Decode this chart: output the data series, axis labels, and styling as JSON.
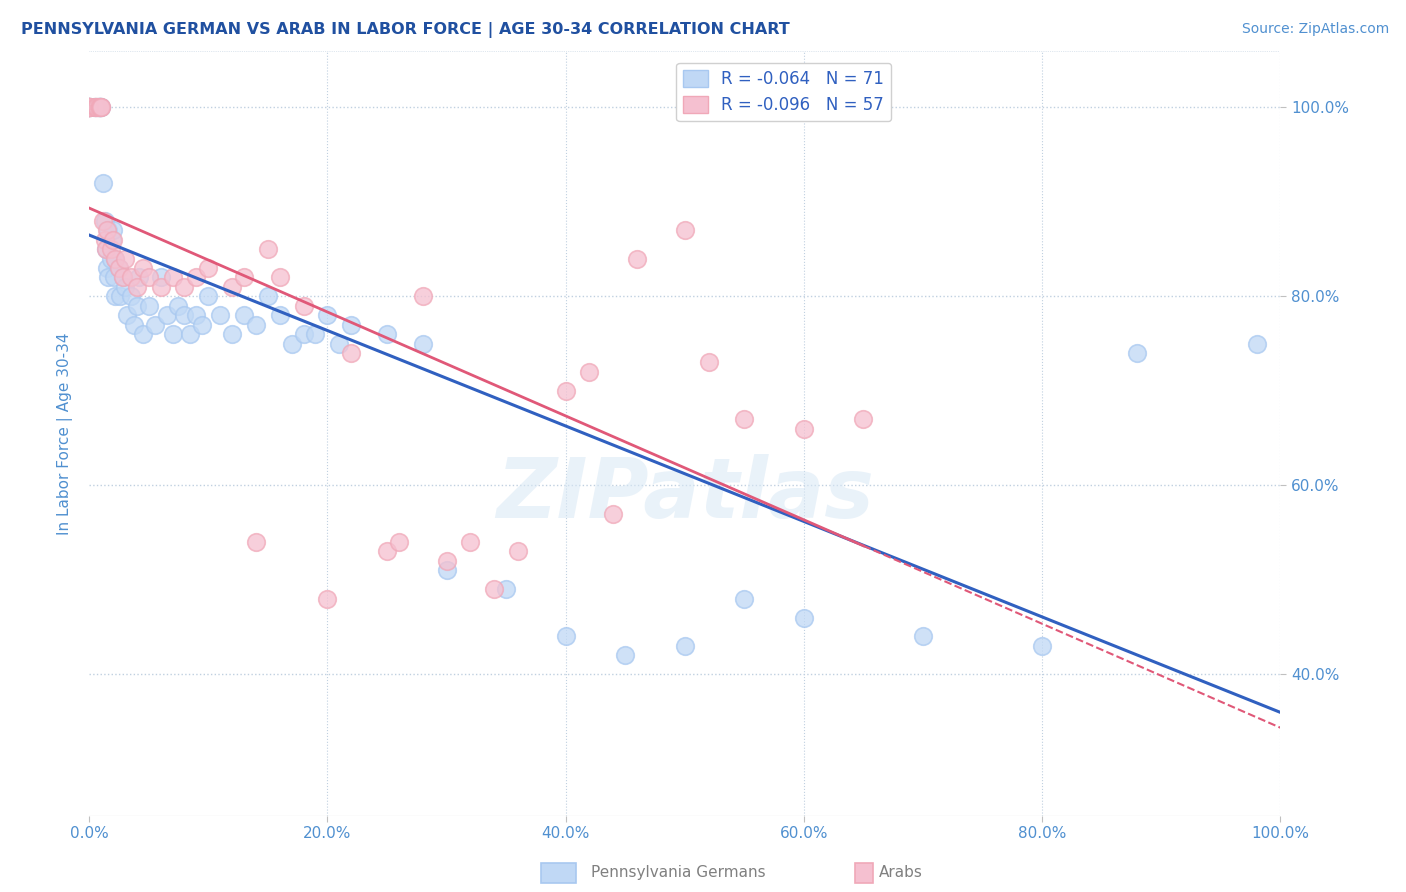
{
  "title": "PENNSYLVANIA GERMAN VS ARAB IN LABOR FORCE | AGE 30-34 CORRELATION CHART",
  "source_text": "Source: ZipAtlas.com",
  "ylabel": "In Labor Force | Age 30-34",
  "watermark": "ZIPatlas",
  "legend_blue_r": "-0.064",
  "legend_blue_n": "71",
  "legend_pink_r": "-0.096",
  "legend_pink_n": "57",
  "xlim": [
    0.0,
    1.0
  ],
  "ylim": [
    0.25,
    1.06
  ],
  "yticks": [
    0.4,
    0.6,
    0.8,
    1.0
  ],
  "xticks": [
    0.0,
    0.2,
    0.4,
    0.6,
    0.8,
    1.0
  ],
  "blue_color": "#A8C8F0",
  "blue_face": "#C0D8F5",
  "pink_color": "#F0A8B8",
  "pink_face": "#F5C0D0",
  "blue_line_color": "#3060C0",
  "pink_line_color": "#E05878",
  "title_color": "#2050A0",
  "axis_color": "#5090D0",
  "grid_color": "#C0D0E0",
  "bg_color": "#FFFFFF",
  "blue_x": [
    0.0,
    0.0,
    0.0,
    0.0,
    0.0,
    0.005,
    0.005,
    0.008,
    0.008,
    0.009,
    0.009,
    0.009,
    0.01,
    0.012,
    0.013,
    0.014,
    0.015,
    0.016,
    0.016,
    0.018,
    0.019,
    0.02,
    0.021,
    0.022,
    0.022,
    0.025,
    0.026,
    0.028,
    0.03,
    0.032,
    0.035,
    0.038,
    0.04,
    0.042,
    0.045,
    0.05,
    0.055,
    0.06,
    0.065,
    0.07,
    0.075,
    0.08,
    0.085,
    0.09,
    0.095,
    0.1,
    0.11,
    0.12,
    0.13,
    0.14,
    0.15,
    0.16,
    0.17,
    0.18,
    0.19,
    0.2,
    0.21,
    0.22,
    0.25,
    0.28,
    0.3,
    0.35,
    0.4,
    0.45,
    0.5,
    0.55,
    0.6,
    0.7,
    0.8,
    0.88,
    0.98
  ],
  "blue_y": [
    1.0,
    1.0,
    1.0,
    1.0,
    1.0,
    1.0,
    1.0,
    1.0,
    1.0,
    1.0,
    1.0,
    1.0,
    1.0,
    0.92,
    0.88,
    0.85,
    0.83,
    0.87,
    0.82,
    0.84,
    0.86,
    0.87,
    0.82,
    0.84,
    0.8,
    0.83,
    0.8,
    0.82,
    0.81,
    0.78,
    0.8,
    0.77,
    0.79,
    0.82,
    0.76,
    0.79,
    0.77,
    0.82,
    0.78,
    0.76,
    0.79,
    0.78,
    0.76,
    0.78,
    0.77,
    0.8,
    0.78,
    0.76,
    0.78,
    0.77,
    0.8,
    0.78,
    0.75,
    0.76,
    0.76,
    0.78,
    0.75,
    0.77,
    0.76,
    0.75,
    0.51,
    0.49,
    0.44,
    0.42,
    0.43,
    0.48,
    0.46,
    0.44,
    0.43,
    0.74,
    0.75
  ],
  "pink_x": [
    0.0,
    0.0,
    0.0,
    0.0,
    0.0,
    0.0,
    0.0,
    0.005,
    0.006,
    0.007,
    0.008,
    0.009,
    0.01,
    0.01,
    0.012,
    0.013,
    0.014,
    0.015,
    0.018,
    0.02,
    0.022,
    0.025,
    0.028,
    0.03,
    0.035,
    0.04,
    0.045,
    0.05,
    0.06,
    0.07,
    0.08,
    0.09,
    0.1,
    0.12,
    0.13,
    0.14,
    0.15,
    0.16,
    0.18,
    0.2,
    0.22,
    0.25,
    0.26,
    0.28,
    0.3,
    0.32,
    0.34,
    0.36,
    0.4,
    0.42,
    0.44,
    0.46,
    0.5,
    0.52,
    0.55,
    0.6,
    0.65
  ],
  "pink_y": [
    1.0,
    1.0,
    1.0,
    1.0,
    1.0,
    1.0,
    1.0,
    1.0,
    1.0,
    1.0,
    1.0,
    1.0,
    1.0,
    1.0,
    0.88,
    0.86,
    0.85,
    0.87,
    0.85,
    0.86,
    0.84,
    0.83,
    0.82,
    0.84,
    0.82,
    0.81,
    0.83,
    0.82,
    0.81,
    0.82,
    0.81,
    0.82,
    0.83,
    0.81,
    0.82,
    0.54,
    0.85,
    0.82,
    0.79,
    0.48,
    0.74,
    0.53,
    0.54,
    0.8,
    0.52,
    0.54,
    0.49,
    0.53,
    0.7,
    0.72,
    0.57,
    0.84,
    0.87,
    0.73,
    0.67,
    0.66,
    0.67
  ]
}
